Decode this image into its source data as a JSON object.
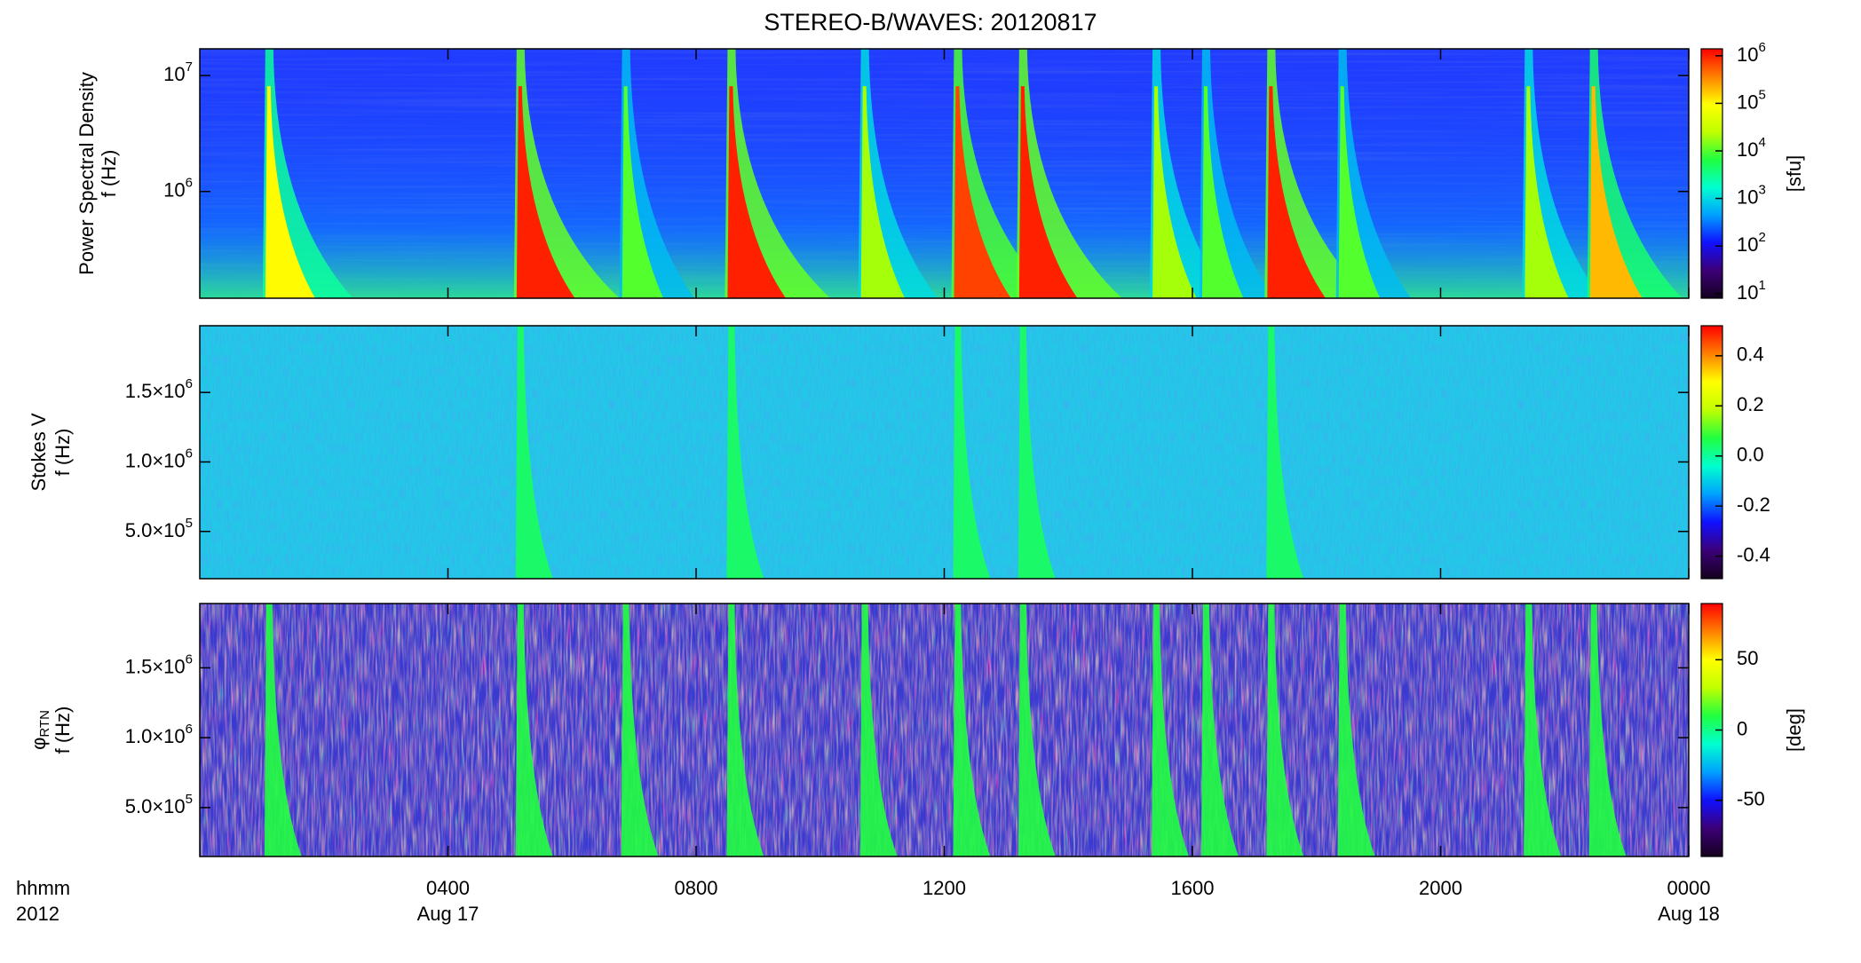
{
  "title": "STEREO-B/WAVES: 20120817",
  "x_axis": {
    "xlim": [
      0,
      24
    ],
    "xticks": [
      {
        "value": 4,
        "label": "0400"
      },
      {
        "value": 8,
        "label": "0800"
      },
      {
        "value": 12,
        "label": "1200"
      },
      {
        "value": 16,
        "label": "1600"
      },
      {
        "value": 20,
        "label": "2000"
      },
      {
        "value": 24,
        "label": "0000"
      }
    ],
    "date_labels": [
      {
        "value": 4,
        "label": "Aug 17"
      },
      {
        "value": 24,
        "label": "Aug 18"
      }
    ],
    "format_label": "hhmm",
    "year_label": "2012"
  },
  "chart_data": [
    {
      "type": "heatmap",
      "ylabel": [
        "Power Spectral Density",
        "f (Hz)"
      ],
      "log": true,
      "ylim": [
        120000,
        17000000
      ],
      "yticks": [
        {
          "value": 1000000,
          "label": "10",
          "exp": "6"
        },
        {
          "value": 10000000,
          "label": "10",
          "exp": "7"
        }
      ],
      "zlim": [
        8,
        1400000
      ],
      "zlog": true,
      "zlabel": "[sfu]",
      "zticks": [
        {
          "value": 10,
          "label": "10",
          "exp": "1"
        },
        {
          "value": 100,
          "label": "10",
          "exp": "2"
        },
        {
          "value": 1000,
          "label": "10",
          "exp": "3"
        },
        {
          "value": 10000,
          "label": "10",
          "exp": "4"
        },
        {
          "value": 100000,
          "label": "10",
          "exp": "5"
        },
        {
          "value": 1000000,
          "label": "10",
          "exp": "6"
        }
      ],
      "background_color": "#1f3cff",
      "colorscale": [
        "#14001e",
        "#3c0078",
        "#1010ff",
        "#00a0ff",
        "#00ffd0",
        "#20ff40",
        "#c0ff00",
        "#ffff00",
        "#ff8000",
        "#ff0000"
      ],
      "bursts": [
        {
          "t": 1.1,
          "value": 100000
        },
        {
          "t": 5.15,
          "value": 1000000
        },
        {
          "t": 6.85,
          "value": 10000
        },
        {
          "t": 8.55,
          "value": 1000000
        },
        {
          "t": 10.7,
          "value": 20000
        },
        {
          "t": 12.2,
          "value": 700000
        },
        {
          "t": 13.25,
          "value": 1000000
        },
        {
          "t": 15.4,
          "value": 20000
        },
        {
          "t": 16.2,
          "value": 10000
        },
        {
          "t": 17.25,
          "value": 1000000
        },
        {
          "t": 18.4,
          "value": 10000
        },
        {
          "t": 21.4,
          "value": 20000
        },
        {
          "t": 22.45,
          "value": 200000
        }
      ]
    },
    {
      "type": "heatmap",
      "ylabel": [
        "Stokes V",
        "f (Hz)"
      ],
      "log": false,
      "ylim": [
        160000,
        1980000
      ],
      "yticks": [
        {
          "value": 500000,
          "label": "5.0×10",
          "exp": "5"
        },
        {
          "value": 1000000,
          "label": "1.0×10",
          "exp": "6"
        },
        {
          "value": 1500000,
          "label": "1.5×10",
          "exp": "6"
        }
      ],
      "zlim": [
        -0.49,
        0.52
      ],
      "zlog": false,
      "zticks": [
        -0.4,
        -0.2,
        {
          "value": 0,
          "label": "0.0"
        },
        0.2,
        0.4
      ],
      "background_color": "#22c8e6",
      "colorscale": [
        "#14001e",
        "#3c0078",
        "#1010ff",
        "#00a0ff",
        "#00ffd0",
        "#20ff40",
        "#c0ff00",
        "#ffff00",
        "#ff8000",
        "#ff0000"
      ],
      "bursts": [
        {
          "t": 5.15,
          "value": 0.05
        },
        {
          "t": 8.55,
          "value": 0.05
        },
        {
          "t": 12.2,
          "value": 0.05
        },
        {
          "t": 13.25,
          "value": 0.05
        },
        {
          "t": 17.25,
          "value": 0.05
        }
      ]
    },
    {
      "type": "heatmap",
      "ylabel": [
        "φ",
        "f (Hz)"
      ],
      "ylabel_sub": "RTN",
      "log": false,
      "ylim": [
        150000,
        1960000
      ],
      "yticks": [
        {
          "value": 500000,
          "label": "5.0×10",
          "exp": "5"
        },
        {
          "value": 1000000,
          "label": "1.0×10",
          "exp": "6"
        },
        {
          "value": 1500000,
          "label": "1.5×10",
          "exp": "6"
        }
      ],
      "zlim": [
        -90,
        90
      ],
      "zlog": false,
      "zlabel": "[deg]",
      "zticks": [
        -50,
        0,
        50
      ],
      "background_color": "#3a3ad0",
      "colorscale": [
        "#14001e",
        "#3c0078",
        "#1010ff",
        "#00a0ff",
        "#00ffd0",
        "#20ff40",
        "#c0ff00",
        "#ffff00",
        "#ff8000",
        "#ff0000"
      ],
      "bursts": [
        {
          "t": 1.1,
          "value": 10
        },
        {
          "t": 5.15,
          "value": 10
        },
        {
          "t": 6.85,
          "value": 10
        },
        {
          "t": 8.55,
          "value": 10
        },
        {
          "t": 10.7,
          "value": 10
        },
        {
          "t": 12.2,
          "value": 10
        },
        {
          "t": 13.25,
          "value": 10
        },
        {
          "t": 15.4,
          "value": 10
        },
        {
          "t": 16.2,
          "value": 10
        },
        {
          "t": 17.25,
          "value": 10
        },
        {
          "t": 18.4,
          "value": 10
        },
        {
          "t": 21.4,
          "value": 10
        },
        {
          "t": 22.45,
          "value": 10
        }
      ]
    }
  ]
}
